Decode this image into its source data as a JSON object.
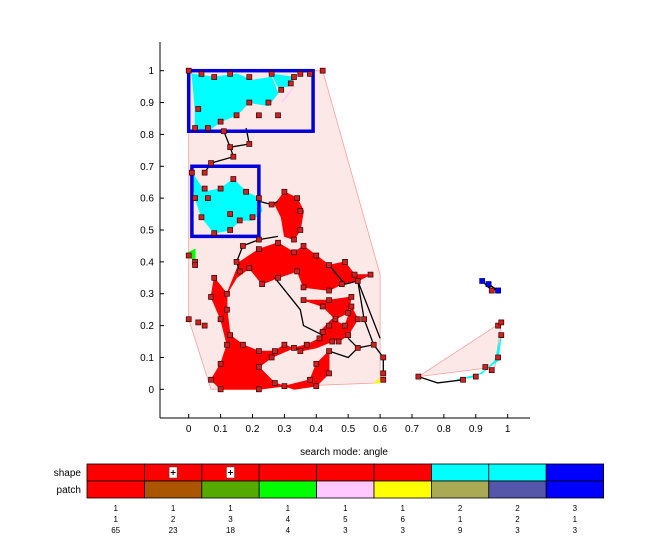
{
  "chart_data": {
    "type": "scatter",
    "title": "",
    "xlabel": "search mode: angle",
    "ylabel": "",
    "xlim": [
      -0.09,
      1.07
    ],
    "ylim": [
      -0.09,
      1.09
    ],
    "xticks": [
      "0",
      "0.1",
      "0.2",
      "0.3",
      "0.4",
      "0.5",
      "0.6",
      "0.7",
      "0.8",
      "0.9",
      "1"
    ],
    "yticks": [
      "0",
      "0.1",
      "0.2",
      "0.3",
      "0.4",
      "0.5",
      "0.6",
      "0.7",
      "0.8",
      "0.9",
      "1"
    ],
    "colors": {
      "hull": "#fde8e8",
      "hull_edge": "#f4a0a0",
      "red_patch": "#ff0000",
      "cyan_patch": "#00ffff",
      "box": "#0000dd",
      "marker": "#cc2222",
      "edge": "#000000"
    },
    "hulls": [
      {
        "points": [
          [
            0.0,
            1.0
          ],
          [
            0.42,
            1.0
          ],
          [
            0.6,
            0.36
          ],
          [
            0.6,
            0.02
          ],
          [
            0.07,
            0.0
          ],
          [
            0.0,
            0.22
          ]
        ]
      },
      {
        "points": [
          [
            0.72,
            0.04
          ],
          [
            0.98,
            0.21
          ],
          [
            0.96,
            0.07
          ]
        ]
      }
    ],
    "boxes": [
      {
        "x": [
          0.0,
          0.39
        ],
        "y": [
          0.81,
          1.0
        ]
      },
      {
        "x": [
          0.01,
          0.22
        ],
        "y": [
          0.48,
          0.7
        ]
      }
    ],
    "patches": [
      {
        "color": "#00ffff",
        "points": [
          [
            0.01,
            0.99
          ],
          [
            0.08,
            0.98
          ],
          [
            0.15,
            0.99
          ],
          [
            0.2,
            0.97
          ],
          [
            0.26,
            0.98
          ],
          [
            0.28,
            0.93
          ],
          [
            0.25,
            0.89
          ],
          [
            0.19,
            0.9
          ],
          [
            0.15,
            0.86
          ],
          [
            0.1,
            0.84
          ],
          [
            0.06,
            0.81
          ],
          [
            0.02,
            0.82
          ],
          [
            0.02,
            0.88
          ]
        ]
      },
      {
        "color": "#00ffff",
        "points": [
          [
            0.26,
            0.99
          ],
          [
            0.33,
            0.98
          ],
          [
            0.31,
            0.95
          ],
          [
            0.28,
            0.95
          ]
        ]
      },
      {
        "color": "#00ffff",
        "points": [
          [
            0.01,
            0.68
          ],
          [
            0.05,
            0.62
          ],
          [
            0.1,
            0.63
          ],
          [
            0.14,
            0.66
          ],
          [
            0.18,
            0.62
          ],
          [
            0.22,
            0.6
          ],
          [
            0.23,
            0.56
          ],
          [
            0.2,
            0.53
          ],
          [
            0.16,
            0.53
          ],
          [
            0.13,
            0.5
          ],
          [
            0.08,
            0.49
          ],
          [
            0.04,
            0.54
          ],
          [
            0.02,
            0.6
          ]
        ]
      },
      {
        "color": "#ff0000",
        "points": [
          [
            0.07,
            0.29
          ],
          [
            0.1,
            0.22
          ],
          [
            0.12,
            0.14
          ],
          [
            0.1,
            0.08
          ],
          [
            0.07,
            0.03
          ],
          [
            0.1,
            0.0
          ],
          [
            0.22,
            0.0
          ],
          [
            0.3,
            0.01
          ],
          [
            0.38,
            0.03
          ],
          [
            0.4,
            0.08
          ],
          [
            0.44,
            0.12
          ],
          [
            0.44,
            0.05
          ],
          [
            0.4,
            0.01
          ],
          [
            0.33,
            0.0
          ],
          [
            0.27,
            0.02
          ],
          [
            0.22,
            0.07
          ],
          [
            0.26,
            0.1
          ],
          [
            0.33,
            0.13
          ],
          [
            0.37,
            0.14
          ],
          [
            0.41,
            0.16
          ],
          [
            0.44,
            0.2
          ],
          [
            0.45,
            0.15
          ],
          [
            0.4,
            0.13
          ],
          [
            0.35,
            0.12
          ],
          [
            0.3,
            0.14
          ],
          [
            0.27,
            0.12
          ],
          [
            0.22,
            0.12
          ],
          [
            0.17,
            0.14
          ],
          [
            0.13,
            0.17
          ],
          [
            0.12,
            0.25
          ],
          [
            0.12,
            0.3
          ],
          [
            0.08,
            0.35
          ]
        ]
      },
      {
        "color": "#ff0000",
        "points": [
          [
            0.12,
            0.3
          ],
          [
            0.16,
            0.4
          ],
          [
            0.22,
            0.44
          ],
          [
            0.28,
            0.46
          ],
          [
            0.33,
            0.43
          ],
          [
            0.36,
            0.45
          ],
          [
            0.4,
            0.42
          ],
          [
            0.44,
            0.39
          ],
          [
            0.49,
            0.4
          ],
          [
            0.52,
            0.36
          ],
          [
            0.57,
            0.36
          ],
          [
            0.53,
            0.34
          ],
          [
            0.48,
            0.33
          ],
          [
            0.44,
            0.31
          ],
          [
            0.36,
            0.32
          ],
          [
            0.34,
            0.37
          ],
          [
            0.28,
            0.35
          ],
          [
            0.23,
            0.33
          ],
          [
            0.19,
            0.38
          ],
          [
            0.15,
            0.35
          ]
        ]
      },
      {
        "color": "#ff0000",
        "points": [
          [
            0.3,
            0.62
          ],
          [
            0.34,
            0.6
          ],
          [
            0.36,
            0.56
          ],
          [
            0.35,
            0.5
          ],
          [
            0.33,
            0.47
          ],
          [
            0.3,
            0.48
          ],
          [
            0.29,
            0.54
          ],
          [
            0.27,
            0.58
          ]
        ]
      },
      {
        "color": "#ff0000",
        "points": [
          [
            0.36,
            0.28
          ],
          [
            0.44,
            0.28
          ],
          [
            0.51,
            0.29
          ],
          [
            0.5,
            0.24
          ],
          [
            0.46,
            0.22
          ],
          [
            0.42,
            0.26
          ]
        ]
      },
      {
        "color": "#ff0000",
        "points": [
          [
            0.41,
            0.18
          ],
          [
            0.45,
            0.22
          ],
          [
            0.49,
            0.2
          ],
          [
            0.51,
            0.26
          ],
          [
            0.53,
            0.22
          ],
          [
            0.5,
            0.17
          ],
          [
            0.47,
            0.15
          ]
        ]
      },
      {
        "color": "#00ff00",
        "points": [
          [
            0.0,
            0.43
          ],
          [
            0.02,
            0.44
          ],
          [
            0.02,
            0.39
          ]
        ]
      },
      {
        "color": "#00ffff",
        "points": [
          [
            0.84,
            0.03
          ],
          [
            0.92,
            0.05
          ],
          [
            0.96,
            0.09
          ],
          [
            0.98,
            0.17
          ],
          [
            0.97,
            0.09
          ],
          [
            0.9,
            0.04
          ]
        ]
      },
      {
        "color": "#ffc8ff",
        "points": [
          [
            0.29,
            0.9
          ],
          [
            0.33,
            0.95
          ],
          [
            0.31,
            0.92
          ]
        ]
      },
      {
        "color": "#ffff00",
        "points": [
          [
            0.58,
            0.02
          ],
          [
            0.61,
            0.04
          ],
          [
            0.6,
            0.02
          ]
        ]
      }
    ],
    "edges": [
      [
        [
          0.11,
          0.81
        ],
        [
          0.13,
          0.76
        ],
        [
          0.14,
          0.73
        ],
        [
          0.07,
          0.71
        ],
        [
          0.05,
          0.68
        ]
      ],
      [
        [
          0.18,
          0.82
        ],
        [
          0.19,
          0.77
        ],
        [
          0.13,
          0.76
        ]
      ],
      [
        [
          0.28,
          0.59
        ],
        [
          0.26,
          0.58
        ],
        [
          0.22,
          0.59
        ]
      ],
      [
        [
          0.28,
          0.48
        ],
        [
          0.22,
          0.47
        ],
        [
          0.17,
          0.45
        ],
        [
          0.15,
          0.4
        ],
        [
          0.16,
          0.37
        ]
      ],
      [
        [
          0.27,
          0.35
        ],
        [
          0.35,
          0.25
        ],
        [
          0.36,
          0.2
        ],
        [
          0.42,
          0.17
        ]
      ],
      [
        [
          0.44,
          0.39
        ],
        [
          0.49,
          0.33
        ],
        [
          0.53,
          0.34
        ]
      ],
      [
        [
          0.53,
          0.34
        ],
        [
          0.55,
          0.22
        ],
        [
          0.58,
          0.14
        ],
        [
          0.61,
          0.1
        ],
        [
          0.61,
          0.05
        ]
      ],
      [
        [
          0.5,
          0.16
        ],
        [
          0.53,
          0.13
        ],
        [
          0.58,
          0.14
        ]
      ],
      [
        [
          0.44,
          0.12
        ],
        [
          0.5,
          0.1
        ],
        [
          0.53,
          0.13
        ]
      ],
      [
        [
          0.53,
          0.34
        ],
        [
          0.6,
          0.16
        ]
      ],
      [
        [
          0.72,
          0.04
        ],
        [
          0.78,
          0.02
        ],
        [
          0.86,
          0.03
        ]
      ],
      [
        [
          0.92,
          0.34
        ],
        [
          0.94,
          0.32
        ],
        [
          0.97,
          0.31
        ],
        [
          0.94,
          0.33
        ]
      ]
    ],
    "markers": [
      [
        0.0,
        1.0
      ],
      [
        0.04,
        0.99
      ],
      [
        0.08,
        0.98
      ],
      [
        0.13,
        0.99
      ],
      [
        0.19,
        0.98
      ],
      [
        0.26,
        0.99
      ],
      [
        0.33,
        0.98
      ],
      [
        0.29,
        0.94
      ],
      [
        0.25,
        0.9
      ],
      [
        0.19,
        0.9
      ],
      [
        0.15,
        0.86
      ],
      [
        0.1,
        0.84
      ],
      [
        0.06,
        0.82
      ],
      [
        0.02,
        0.82
      ],
      [
        0.03,
        0.88
      ],
      [
        0.32,
        0.96
      ],
      [
        0.28,
        0.86
      ],
      [
        0.22,
        0.86
      ],
      [
        0.42,
        1.0
      ],
      [
        0.35,
        0.99
      ],
      [
        0.38,
        0.99
      ],
      [
        0.11,
        0.81
      ],
      [
        0.13,
        0.76
      ],
      [
        0.14,
        0.73
      ],
      [
        0.07,
        0.71
      ],
      [
        0.05,
        0.68
      ],
      [
        0.19,
        0.77
      ],
      [
        0.01,
        0.68
      ],
      [
        0.05,
        0.63
      ],
      [
        0.1,
        0.63
      ],
      [
        0.14,
        0.66
      ],
      [
        0.18,
        0.62
      ],
      [
        0.22,
        0.6
      ],
      [
        0.2,
        0.54
      ],
      [
        0.16,
        0.53
      ],
      [
        0.13,
        0.5
      ],
      [
        0.08,
        0.49
      ],
      [
        0.04,
        0.54
      ],
      [
        0.02,
        0.6
      ],
      [
        0.06,
        0.6
      ],
      [
        0.13,
        0.55
      ],
      [
        0.26,
        0.58
      ],
      [
        0.3,
        0.62
      ],
      [
        0.34,
        0.6
      ],
      [
        0.35,
        0.56
      ],
      [
        0.35,
        0.5
      ],
      [
        0.33,
        0.47
      ],
      [
        0.22,
        0.47
      ],
      [
        0.17,
        0.45
      ],
      [
        0.15,
        0.4
      ],
      [
        0.16,
        0.37
      ],
      [
        0.12,
        0.3
      ],
      [
        0.08,
        0.35
      ],
      [
        0.07,
        0.29
      ],
      [
        0.1,
        0.22
      ],
      [
        0.12,
        0.14
      ],
      [
        0.1,
        0.08
      ],
      [
        0.07,
        0.03
      ],
      [
        0.1,
        0.0
      ],
      [
        0.22,
        0.0
      ],
      [
        0.3,
        0.01
      ],
      [
        0.38,
        0.03
      ],
      [
        0.4,
        0.08
      ],
      [
        0.44,
        0.12
      ],
      [
        0.44,
        0.05
      ],
      [
        0.4,
        0.01
      ],
      [
        0.27,
        0.02
      ],
      [
        0.22,
        0.07
      ],
      [
        0.26,
        0.1
      ],
      [
        0.33,
        0.13
      ],
      [
        0.37,
        0.14
      ],
      [
        0.41,
        0.16
      ],
      [
        0.44,
        0.2
      ],
      [
        0.45,
        0.15
      ],
      [
        0.35,
        0.12
      ],
      [
        0.3,
        0.14
      ],
      [
        0.27,
        0.12
      ],
      [
        0.22,
        0.12
      ],
      [
        0.17,
        0.14
      ],
      [
        0.13,
        0.17
      ],
      [
        0.12,
        0.25
      ],
      [
        0.22,
        0.44
      ],
      [
        0.28,
        0.46
      ],
      [
        0.33,
        0.43
      ],
      [
        0.36,
        0.45
      ],
      [
        0.4,
        0.42
      ],
      [
        0.44,
        0.39
      ],
      [
        0.49,
        0.4
      ],
      [
        0.52,
        0.36
      ],
      [
        0.57,
        0.36
      ],
      [
        0.53,
        0.34
      ],
      [
        0.48,
        0.33
      ],
      [
        0.44,
        0.31
      ],
      [
        0.36,
        0.32
      ],
      [
        0.34,
        0.37
      ],
      [
        0.28,
        0.35
      ],
      [
        0.23,
        0.33
      ],
      [
        0.19,
        0.38
      ],
      [
        0.36,
        0.28
      ],
      [
        0.44,
        0.28
      ],
      [
        0.51,
        0.29
      ],
      [
        0.5,
        0.24
      ],
      [
        0.46,
        0.22
      ],
      [
        0.42,
        0.26
      ],
      [
        0.42,
        0.18
      ],
      [
        0.49,
        0.2
      ],
      [
        0.51,
        0.26
      ],
      [
        0.53,
        0.22
      ],
      [
        0.5,
        0.17
      ],
      [
        0.47,
        0.15
      ],
      [
        0.55,
        0.22
      ],
      [
        0.58,
        0.14
      ],
      [
        0.61,
        0.1
      ],
      [
        0.61,
        0.05
      ],
      [
        0.61,
        0.03
      ],
      [
        0.53,
        0.13
      ],
      [
        0.0,
        0.22
      ],
      [
        0.03,
        0.21
      ],
      [
        0.05,
        0.2
      ],
      [
        0.0,
        0.42
      ],
      [
        0.02,
        0.4
      ],
      [
        0.02,
        0.39
      ],
      [
        0.72,
        0.04
      ],
      [
        0.86,
        0.03
      ],
      [
        0.9,
        0.04
      ],
      [
        0.93,
        0.07
      ],
      [
        0.95,
        0.06
      ],
      [
        0.97,
        0.1
      ],
      [
        0.98,
        0.17
      ],
      [
        0.97,
        0.2
      ],
      [
        0.98,
        0.21
      ],
      [
        0.94,
        0.33
      ],
      [
        0.95,
        0.31
      ],
      [
        0.97,
        0.31
      ]
    ],
    "blue_markers": [
      [
        0.92,
        0.34
      ],
      [
        0.94,
        0.33
      ],
      [
        0.97,
        0.31
      ]
    ],
    "legend": {
      "row_labels": [
        "shape",
        "patch"
      ],
      "columns": [
        {
          "shape": "#ff0000",
          "patch": "#ff0000",
          "marked": false,
          "nums": [
            "1",
            "1",
            "65"
          ]
        },
        {
          "shape": "#ff0000",
          "patch": "#aa5500",
          "marked": true,
          "nums": [
            "1",
            "2",
            "23"
          ]
        },
        {
          "shape": "#ff0000",
          "patch": "#55aa00",
          "marked": true,
          "nums": [
            "1",
            "3",
            "18"
          ]
        },
        {
          "shape": "#ff0000",
          "patch": "#00ff00",
          "marked": false,
          "nums": [
            "1",
            "4",
            "4"
          ]
        },
        {
          "shape": "#ff0000",
          "patch": "#ffc8ff",
          "marked": false,
          "nums": [
            "1",
            "5",
            "3"
          ]
        },
        {
          "shape": "#ff0000",
          "patch": "#ffff00",
          "marked": false,
          "nums": [
            "1",
            "6",
            "3"
          ]
        },
        {
          "shape": "#00ffff",
          "patch": "#aaaa55",
          "marked": false,
          "nums": [
            "2",
            "1",
            "9"
          ]
        },
        {
          "shape": "#00ffff",
          "patch": "#5555aa",
          "marked": false,
          "nums": [
            "2",
            "2",
            "3"
          ]
        },
        {
          "shape": "#0000ff",
          "patch": "#0000ff",
          "marked": false,
          "nums": [
            "3",
            "1",
            "3"
          ]
        }
      ]
    }
  }
}
